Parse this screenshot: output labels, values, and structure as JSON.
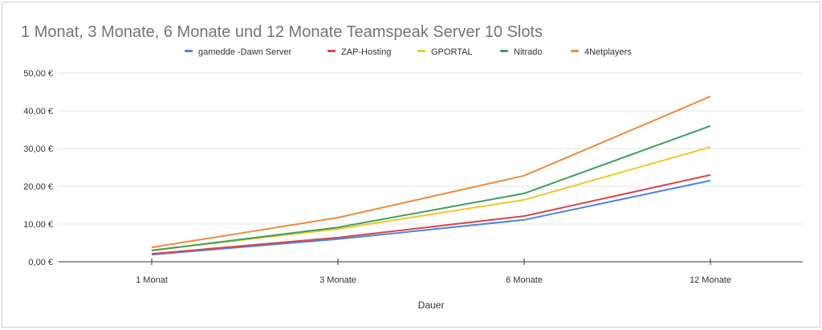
{
  "chart_data": {
    "type": "line",
    "title": "1 Monat, 3 Monate, 6 Monate und 12 Monate Teamspeak Server 10 Slots",
    "xlabel": "Dauer",
    "ylabel": "",
    "categories": [
      "1 Monat",
      "3 Monate",
      "6 Monate",
      "12 Monate"
    ],
    "ylim": [
      0,
      50
    ],
    "yticks": [
      0,
      10,
      20,
      30,
      40,
      50
    ],
    "ytick_labels": [
      "0,00 €",
      "10,00 €",
      "20,00 €",
      "30,00 €",
      "40,00 €",
      "50,00 €"
    ],
    "grid": true,
    "legend_position": "top",
    "series": [
      {
        "name": "gamedde -Dawn Server",
        "color": "#4a86e0",
        "values": [
          1.9,
          6.0,
          11.1,
          21.5
        ]
      },
      {
        "name": "ZAP-Hosting",
        "color": "#d9464b",
        "values": [
          2.1,
          6.4,
          12.1,
          23.0
        ]
      },
      {
        "name": "GPORTAL",
        "color": "#f2c728",
        "values": [
          3.0,
          8.7,
          16.4,
          30.4
        ]
      },
      {
        "name": "Nitrado",
        "color": "#3f9e5b",
        "values": [
          3.0,
          9.1,
          18.1,
          36.0
        ]
      },
      {
        "name": "4Netplayers",
        "color": "#ee8a3c",
        "values": [
          3.8,
          11.7,
          22.8,
          43.8
        ]
      }
    ]
  }
}
